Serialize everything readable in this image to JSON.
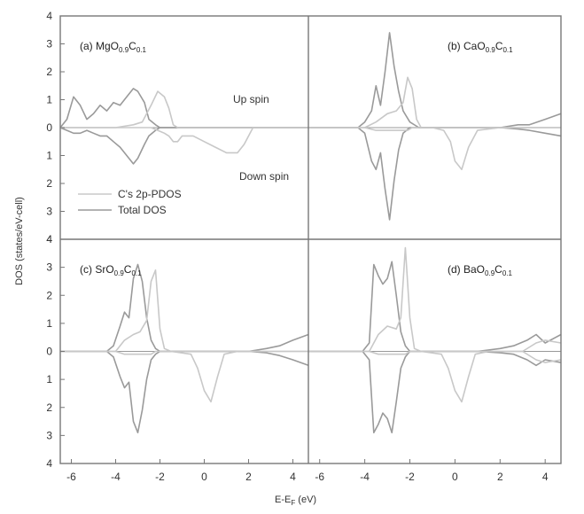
{
  "figure": {
    "xlabel": "E-E",
    "xlabel_sub": "F",
    "xlabel_unit": " (eV)",
    "ylabel": "DOS (states/eV-cell)",
    "up_label": "Up spin",
    "down_label": "Down spin",
    "legend": [
      "C's 2p-PDOS",
      "Total DOS"
    ],
    "colors": {
      "total": "#9a9a9a",
      "pdos": "#c8c8c8",
      "frame": "#777777"
    }
  },
  "chart_data": {
    "type": "line",
    "xlim": [
      -6.5,
      4.7
    ],
    "ylim": [
      -4,
      4
    ],
    "xticks": [
      -6,
      -4,
      -2,
      0,
      2,
      4
    ],
    "yticks": [
      4,
      3,
      2,
      1,
      0,
      1,
      2,
      3,
      4
    ],
    "grid": false,
    "legend_position": "left-middle",
    "panels": [
      {
        "label": "(a) MgO",
        "sub1": "0.9",
        "mid": "C",
        "sub2": "0.1",
        "label_position": "top-left",
        "series": [
          {
            "role": "total",
            "name": "Total DOS",
            "x": [
              -6.5,
              -6.2,
              -5.9,
              -5.6,
              -5.3,
              -5.0,
              -4.7,
              -4.4,
              -4.1,
              -3.8,
              -3.5,
              -3.2,
              -3.0,
              -2.7,
              -2.5,
              -2.2,
              -2.0,
              -1.7,
              -1.4,
              -1.0,
              0,
              1,
              2,
              3,
              4,
              4.7
            ],
            "up": [
              0,
              0.3,
              1.1,
              0.8,
              0.3,
              0.5,
              0.8,
              0.6,
              0.9,
              0.8,
              1.1,
              1.4,
              1.3,
              0.9,
              0.3,
              0.1,
              0,
              0,
              0,
              0,
              0,
              0,
              0,
              0,
              0,
              0
            ],
            "down": [
              0,
              0.1,
              0.2,
              0.2,
              0.1,
              0.2,
              0.3,
              0.3,
              0.5,
              0.7,
              1.0,
              1.3,
              1.1,
              0.6,
              0.3,
              0.1,
              0,
              0,
              0,
              0,
              0,
              0,
              0,
              0,
              0,
              0
            ]
          },
          {
            "role": "pdos",
            "name": "C's 2p-PDOS",
            "x": [
              -6.5,
              -4.0,
              -3.2,
              -2.8,
              -2.4,
              -2.1,
              -1.8,
              -1.6,
              -1.4,
              -1.2,
              -1.0,
              -0.5,
              0,
              0.5,
              1.0,
              1.5,
              1.8,
              2.2,
              4.7
            ],
            "up": [
              0,
              0,
              0.1,
              0.2,
              0.8,
              1.3,
              1.1,
              0.7,
              0.1,
              0,
              0,
              0,
              0,
              0,
              0,
              0,
              0,
              0,
              0
            ],
            "down": [
              0,
              0,
              0,
              0,
              0,
              0.1,
              0.2,
              0.3,
              0.5,
              0.5,
              0.3,
              0.3,
              0.5,
              0.7,
              0.9,
              0.9,
              0.6,
              0,
              0
            ]
          }
        ]
      },
      {
        "label": "(b) CaO",
        "sub1": "0.9",
        "mid": "C",
        "sub2": "0.1",
        "label_position": "top-right",
        "series": [
          {
            "role": "total",
            "name": "Total DOS",
            "x": [
              -6.5,
              -4.3,
              -4.0,
              -3.7,
              -3.5,
              -3.3,
              -3.1,
              -2.9,
              -2.7,
              -2.5,
              -2.3,
              -2.0,
              -1.6,
              0,
              1,
              2,
              2.8,
              3.3,
              4.0,
              4.7
            ],
            "up": [
              0,
              0,
              0.2,
              0.6,
              1.5,
              0.8,
              2.0,
              3.4,
              2.2,
              1.3,
              0.6,
              0.2,
              0,
              0,
              0,
              0,
              0.1,
              0.1,
              0.3,
              0.5
            ],
            "down": [
              0,
              0,
              0.2,
              1.2,
              1.5,
              0.9,
              2.2,
              3.3,
              1.9,
              0.8,
              0.2,
              0,
              0,
              0,
              0,
              0,
              0.05,
              0.1,
              0.2,
              0.3
            ]
          },
          {
            "role": "pdos",
            "name": "C's 2p-PDOS",
            "x": [
              -6.5,
              -4.0,
              -3.5,
              -3.0,
              -2.6,
              -2.3,
              -2.1,
              -1.9,
              -1.7,
              -1.5,
              -1.0,
              -0.5,
              -0.2,
              0,
              0.3,
              0.6,
              1.0,
              2.0,
              4.7
            ],
            "up": [
              0,
              0,
              0.2,
              0.5,
              0.6,
              0.9,
              1.8,
              1.4,
              0.3,
              0,
              0,
              0,
              0,
              0,
              0,
              0,
              0,
              0,
              0
            ],
            "down": [
              0,
              0,
              0.1,
              0.1,
              0.1,
              0.1,
              0.1,
              0,
              0,
              0,
              0,
              0.1,
              0.5,
              1.2,
              1.5,
              0.7,
              0.1,
              0,
              0
            ]
          }
        ]
      },
      {
        "label": "(c) SrO",
        "sub1": "0.9",
        "mid": "C",
        "sub2": "0.1",
        "label_position": "top-left",
        "series": [
          {
            "role": "total",
            "name": "Total DOS",
            "x": [
              -6.5,
              -4.4,
              -4.1,
              -3.8,
              -3.6,
              -3.4,
              -3.2,
              -3.0,
              -2.8,
              -2.6,
              -2.4,
              -2.2,
              -2.0,
              0,
              1,
              2,
              2.8,
              3.4,
              4.0,
              4.7
            ],
            "up": [
              0,
              0,
              0.2,
              0.9,
              1.4,
              1.2,
              2.6,
              3.1,
              2.5,
              1.2,
              0.4,
              0.1,
              0,
              0,
              0,
              0,
              0.1,
              0.2,
              0.4,
              0.6
            ],
            "down": [
              0,
              0,
              0.2,
              0.9,
              1.3,
              1.1,
              2.5,
              2.9,
              2.1,
              1.0,
              0.3,
              0.1,
              0,
              0,
              0,
              0,
              0.05,
              0.15,
              0.3,
              0.5
            ]
          },
          {
            "role": "pdos",
            "name": "C's 2p-PDOS",
            "x": [
              -6.5,
              -4.0,
              -3.6,
              -3.2,
              -2.9,
              -2.6,
              -2.4,
              -2.2,
              -2.0,
              -1.8,
              -1.5,
              -0.6,
              -0.3,
              0,
              0.3,
              0.6,
              0.9,
              1.5,
              4.7
            ],
            "up": [
              0,
              0,
              0.4,
              0.6,
              0.7,
              1.1,
              2.5,
              2.9,
              0.8,
              0.1,
              0,
              0,
              0,
              0,
              0,
              0,
              0,
              0,
              0
            ],
            "down": [
              0,
              0,
              0.1,
              0.1,
              0.1,
              0.1,
              0.1,
              0,
              0,
              0,
              0,
              0.1,
              0.6,
              1.4,
              1.8,
              0.9,
              0.1,
              0,
              0
            ]
          }
        ]
      },
      {
        "label": "(d) BaO",
        "sub1": "0.9",
        "mid": "C",
        "sub2": "0.1",
        "label_position": "top-right",
        "series": [
          {
            "role": "total",
            "name": "Total DOS",
            "x": [
              -6.5,
              -4.1,
              -3.8,
              -3.6,
              -3.4,
              -3.2,
              -3.0,
              -2.8,
              -2.6,
              -2.4,
              -2.2,
              -2.0,
              -1.8,
              0,
              1,
              2,
              2.6,
              3.2,
              3.6,
              4.0,
              4.7
            ],
            "up": [
              0,
              0,
              0.3,
              3.1,
              2.7,
              2.4,
              2.6,
              3.2,
              2.0,
              0.7,
              0.2,
              0,
              0,
              0,
              0,
              0.1,
              0.2,
              0.4,
              0.6,
              0.3,
              0.6
            ],
            "down": [
              0,
              0,
              0.3,
              2.9,
              2.6,
              2.2,
              2.4,
              2.9,
              1.8,
              0.6,
              0.2,
              0,
              0,
              0,
              0,
              0.05,
              0.1,
              0.3,
              0.5,
              0.3,
              0.4
            ]
          },
          {
            "role": "pdos",
            "name": "C's 2p-PDOS",
            "x": [
              -6.5,
              -3.8,
              -3.4,
              -3.0,
              -2.6,
              -2.4,
              -2.2,
              -2.0,
              -1.8,
              -1.5,
              -0.6,
              -0.3,
              0,
              0.3,
              0.6,
              0.9,
              1.5,
              3.0,
              3.6,
              4.0,
              4.7
            ],
            "up": [
              0,
              0,
              0.6,
              0.9,
              0.8,
              1.2,
              3.7,
              1.2,
              0.1,
              0,
              0,
              0,
              0,
              0,
              0,
              0,
              0,
              0,
              0.3,
              0.4,
              0.3
            ],
            "down": [
              0,
              0,
              0.1,
              0.1,
              0.1,
              0.1,
              0.1,
              0,
              0,
              0,
              0.1,
              0.6,
              1.4,
              1.8,
              0.9,
              0.1,
              0,
              0,
              0.3,
              0.4,
              0.3
            ]
          }
        ]
      }
    ]
  }
}
